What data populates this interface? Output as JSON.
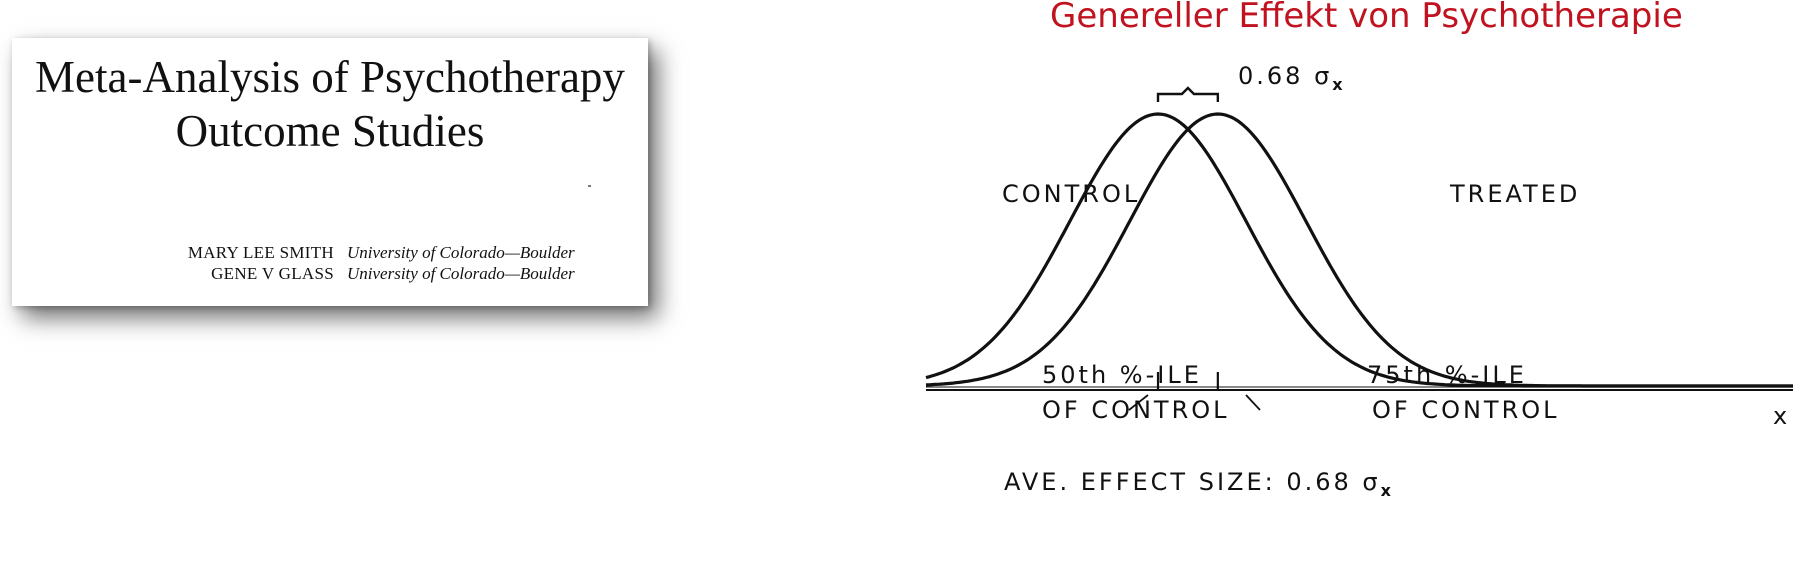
{
  "paper": {
    "title_line1": "Meta-Analysis of Psychotherapy",
    "title_line2": "Outcome Studies",
    "authors": [
      {
        "name": "MARY LEE SMITH",
        "affiliation": "University of Colorado—Boulder"
      },
      {
        "name": "GENE V GLASS",
        "affiliation": "University of Colorado—Boulder"
      }
    ]
  },
  "slide": {
    "title": "Genereller Effekt von Psychotherapie",
    "title_color": "#c1121f"
  },
  "diagram": {
    "shift_label": "0.68 σ",
    "shift_subscript": "x",
    "control_label": "CONTROL",
    "treated_label": "TREATED",
    "axis_label": "x",
    "control_pct_line1": "50th %-ILE",
    "control_pct_line2": "OF CONTROL",
    "treated_pct_line1": "75th %-ILE",
    "treated_pct_line2": "OF CONTROL",
    "effect_text": "AVE. EFFECT SIZE: 0.68 σ",
    "effect_subscript": "x",
    "effect_size": 0.68
  }
}
